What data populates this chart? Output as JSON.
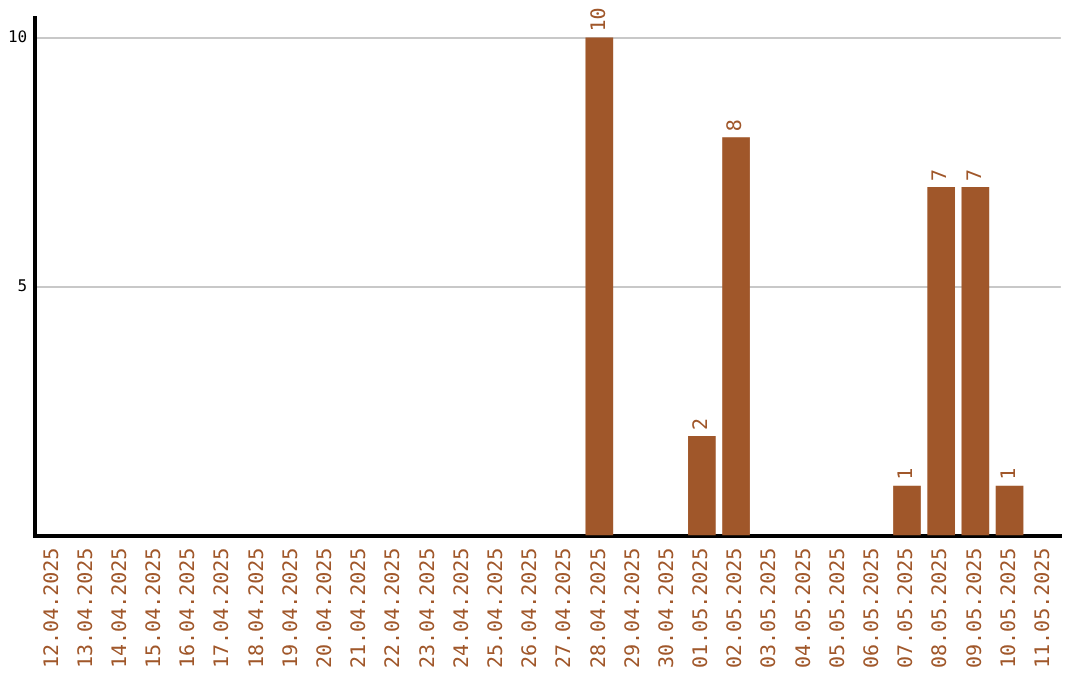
{
  "chart_data": {
    "type": "bar",
    "categories": [
      "12.04.2025",
      "13.04.2025",
      "14.04.2025",
      "15.04.2025",
      "16.04.2025",
      "17.04.2025",
      "18.04.2025",
      "19.04.2025",
      "20.04.2025",
      "21.04.2025",
      "22.04.2025",
      "23.04.2025",
      "24.04.2025",
      "25.04.2025",
      "26.04.2025",
      "27.04.2025",
      "28.04.2025",
      "29.04.2025",
      "30.04.2025",
      "01.05.2025",
      "02.05.2025",
      "03.05.2025",
      "04.05.2025",
      "05.05.2025",
      "06.05.2025",
      "07.05.2025",
      "08.05.2025",
      "09.05.2025",
      "10.05.2025",
      "11.05.2025"
    ],
    "values": [
      0,
      0,
      0,
      0,
      0,
      0,
      0,
      0,
      0,
      0,
      0,
      0,
      0,
      0,
      0,
      0,
      10,
      0,
      0,
      2,
      8,
      0,
      0,
      0,
      0,
      1,
      7,
      7,
      1,
      0
    ],
    "value_labels": [
      null,
      null,
      null,
      null,
      null,
      null,
      null,
      null,
      null,
      null,
      null,
      null,
      null,
      null,
      null,
      null,
      "10",
      null,
      null,
      "2",
      "8",
      null,
      null,
      null,
      null,
      "1",
      "7",
      "7",
      "1",
      null
    ],
    "color": "#a0572a",
    "ylim": [
      0,
      10.4
    ],
    "yticks": [
      5,
      10
    ],
    "grid": "y",
    "legend": false
  }
}
